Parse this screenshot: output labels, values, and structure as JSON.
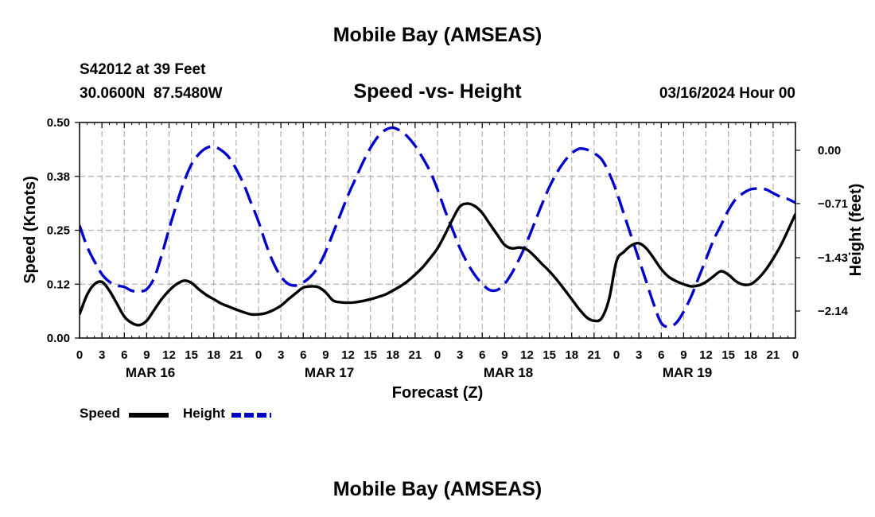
{
  "page_title": "Mobile Bay (AMSEAS)",
  "bottom_title": "Mobile Bay (AMSEAS)",
  "station": {
    "id_line": "S42012 at 39 Feet",
    "coords": "30.0600N  87.5480W"
  },
  "date_label": "03/16/2024 Hour 00",
  "colors": {
    "speed": "#000000",
    "height": "#0000cc",
    "grid": "#b0b0b0"
  },
  "chart_data": {
    "type": "line",
    "title": "Speed -vs- Height",
    "xlabel": "Forecast (Z)",
    "ylabel": "Speed (Knots)",
    "y2label": "Height (feet)",
    "xlim": [
      0,
      96
    ],
    "ylim": [
      0,
      0.5
    ],
    "y2lim": [
      -2.5,
      0.37
    ],
    "yticks": [
      0.0,
      0.125,
      0.25,
      0.375,
      0.5
    ],
    "yticklabels": [
      "0.00",
      "0.12",
      "0.25",
      "0.38",
      "0.50"
    ],
    "y2ticks": [
      0.0,
      -0.71,
      -1.43,
      -2.14
    ],
    "y2ticklabels": [
      "0.00",
      "−0.71",
      "−1.43",
      "−2.14"
    ],
    "xticks": [
      0,
      3,
      6,
      9,
      12,
      15,
      18,
      21,
      24,
      27,
      30,
      33,
      36,
      39,
      42,
      45,
      48,
      51,
      54,
      57,
      60,
      63,
      66,
      69,
      72,
      75,
      78,
      81,
      84,
      87,
      90,
      93,
      96
    ],
    "xticklabels": [
      "0",
      "3",
      "6",
      "9",
      "12",
      "15",
      "18",
      "21",
      "0",
      "3",
      "6",
      "9",
      "12",
      "15",
      "18",
      "21",
      "0",
      "3",
      "6",
      "9",
      "12",
      "15",
      "18",
      "21",
      "0",
      "3",
      "6",
      "9",
      "12",
      "15",
      "18",
      "21",
      "0"
    ],
    "day_labels": [
      {
        "label": "MAR 16",
        "x": 9.5
      },
      {
        "label": "MAR 17",
        "x": 33.5
      },
      {
        "label": "MAR 18",
        "x": 57.5
      },
      {
        "label": "MAR 19",
        "x": 81.5
      }
    ],
    "series": [
      {
        "name": "Speed",
        "axis": "left",
        "style": "solid",
        "x": [
          0,
          1,
          2,
          3,
          4,
          5,
          6,
          7,
          8,
          9,
          10,
          11,
          12,
          13,
          14,
          15,
          16,
          17,
          18,
          19,
          20,
          21,
          22,
          23,
          24,
          25,
          26,
          27,
          28,
          29,
          30,
          31,
          32,
          33,
          34,
          35,
          36,
          37,
          38,
          39,
          40,
          41,
          42,
          43,
          44,
          45,
          46,
          47,
          48,
          49,
          50,
          51,
          52,
          53,
          54,
          55,
          56,
          57,
          58,
          59,
          60,
          61,
          62,
          63,
          64,
          65,
          66,
          67,
          68,
          69,
          70,
          71,
          72,
          73,
          74,
          75,
          76,
          77,
          78,
          79,
          80,
          81,
          82,
          83,
          84,
          85,
          86,
          87,
          88,
          89,
          90,
          91,
          92,
          93,
          94,
          95,
          96
        ],
        "values": [
          0.055,
          0.1,
          0.125,
          0.13,
          0.11,
          0.08,
          0.05,
          0.035,
          0.03,
          0.04,
          0.065,
          0.09,
          0.11,
          0.125,
          0.133,
          0.128,
          0.113,
          0.1,
          0.09,
          0.08,
          0.073,
          0.066,
          0.06,
          0.055,
          0.055,
          0.058,
          0.065,
          0.075,
          0.09,
          0.104,
          0.117,
          0.12,
          0.118,
          0.106,
          0.087,
          0.083,
          0.082,
          0.083,
          0.086,
          0.09,
          0.095,
          0.101,
          0.11,
          0.12,
          0.132,
          0.147,
          0.164,
          0.185,
          0.208,
          0.24,
          0.275,
          0.305,
          0.312,
          0.306,
          0.29,
          0.265,
          0.24,
          0.216,
          0.208,
          0.21,
          0.205,
          0.19,
          0.172,
          0.155,
          0.135,
          0.113,
          0.09,
          0.067,
          0.048,
          0.04,
          0.046,
          0.09,
          0.178,
          0.2,
          0.215,
          0.22,
          0.208,
          0.185,
          0.16,
          0.142,
          0.132,
          0.125,
          0.12,
          0.122,
          0.13,
          0.143,
          0.155,
          0.147,
          0.132,
          0.124,
          0.125,
          0.138,
          0.158,
          0.184,
          0.214,
          0.25,
          0.288
        ]
      },
      {
        "name": "Height",
        "axis": "right",
        "style": "dashed",
        "x": [
          0,
          1,
          2,
          3,
          4,
          5,
          6,
          7,
          8,
          9,
          10,
          11,
          12,
          13,
          14,
          15,
          16,
          17,
          18,
          19,
          20,
          21,
          22,
          23,
          24,
          25,
          26,
          27,
          28,
          29,
          30,
          31,
          32,
          33,
          34,
          35,
          36,
          37,
          38,
          39,
          40,
          41,
          42,
          43,
          44,
          45,
          46,
          47,
          48,
          49,
          50,
          51,
          52,
          53,
          54,
          55,
          56,
          57,
          58,
          59,
          60,
          61,
          62,
          63,
          64,
          65,
          66,
          67,
          68,
          69,
          70,
          71,
          72,
          73,
          74,
          75,
          76,
          77,
          78,
          79,
          80,
          81,
          82,
          83,
          84,
          85,
          86,
          87,
          88,
          89,
          90,
          91,
          92,
          93,
          94,
          95,
          96
        ],
        "values": [
          -1.0,
          -1.28,
          -1.48,
          -1.65,
          -1.75,
          -1.8,
          -1.82,
          -1.87,
          -1.88,
          -1.85,
          -1.7,
          -1.4,
          -1.05,
          -0.72,
          -0.42,
          -0.19,
          -0.05,
          0.03,
          0.05,
          0.0,
          -0.09,
          -0.25,
          -0.45,
          -0.7,
          -0.95,
          -1.25,
          -1.5,
          -1.68,
          -1.78,
          -1.8,
          -1.76,
          -1.68,
          -1.55,
          -1.35,
          -1.1,
          -0.85,
          -0.6,
          -0.38,
          -0.16,
          0.03,
          0.18,
          0.27,
          0.3,
          0.26,
          0.18,
          0.06,
          -0.1,
          -0.28,
          -0.52,
          -0.8,
          -1.05,
          -1.3,
          -1.5,
          -1.66,
          -1.78,
          -1.86,
          -1.86,
          -1.78,
          -1.63,
          -1.44,
          -1.22,
          -0.97,
          -0.72,
          -0.49,
          -0.3,
          -0.15,
          -0.04,
          0.02,
          0.01,
          -0.04,
          -0.12,
          -0.3,
          -0.55,
          -0.85,
          -1.15,
          -1.45,
          -1.75,
          -2.05,
          -2.3,
          -2.35,
          -2.3,
          -2.15,
          -1.95,
          -1.7,
          -1.45,
          -1.2,
          -1.0,
          -0.8,
          -0.65,
          -0.57,
          -0.52,
          -0.51,
          -0.52,
          -0.57,
          -0.62,
          -0.65,
          -0.7
        ]
      }
    ],
    "legend": [
      {
        "label": "Speed",
        "series": "Speed"
      },
      {
        "label": "Height",
        "series": "Height"
      }
    ],
    "grid": true
  }
}
